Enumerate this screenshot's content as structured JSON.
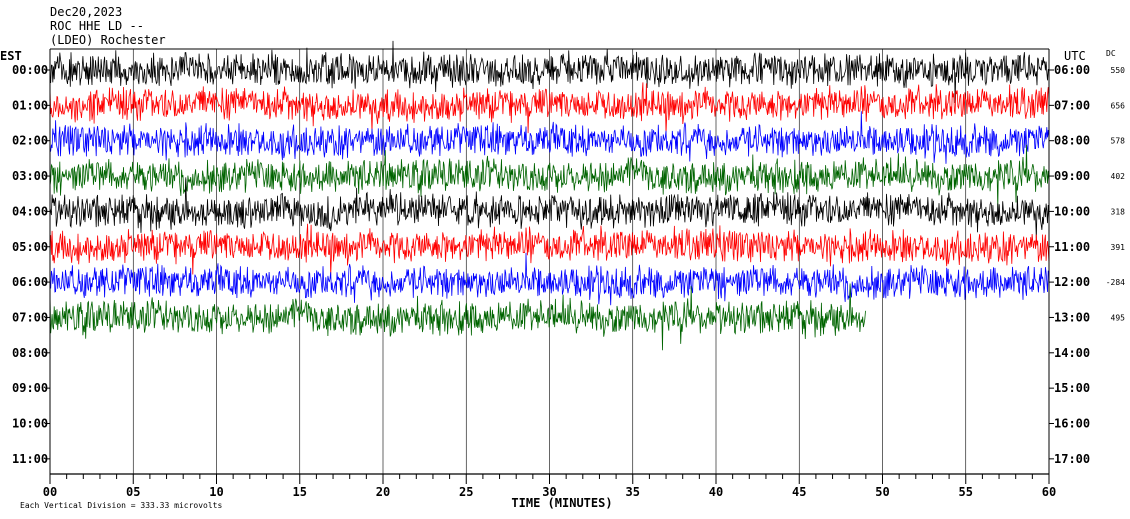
{
  "header": {
    "date": "Dec20,2023",
    "station": "ROC HHE LD --",
    "network": "(LDEO) Rochester"
  },
  "left_axis_label": "EST",
  "right_axis_label": "UTC",
  "dc_label": "DC",
  "x_axis_title": "TIME (MINUTES)",
  "footer_note": "Each Vertical Division =  333.33 microvolts",
  "chart_data": {
    "type": "line",
    "title": "Dec20,2023",
    "xlabel": "TIME (MINUTES)",
    "xlim": [
      0,
      60
    ],
    "x_ticks": [
      "00",
      "05",
      "10",
      "15",
      "20",
      "25",
      "30",
      "35",
      "40",
      "45",
      "50",
      "55",
      "60"
    ],
    "grid": true,
    "est_labels": [
      "00:00",
      "01:00",
      "02:00",
      "03:00",
      "04:00",
      "05:00",
      "06:00",
      "07:00",
      "08:00",
      "09:00",
      "10:00",
      "11:00"
    ],
    "utc_labels": [
      "06:00",
      "07:00",
      "08:00",
      "09:00",
      "10:00",
      "11:00",
      "12:00",
      "13:00",
      "14:00",
      "15:00",
      "16:00",
      "17:00"
    ],
    "dc_offsets": [
      "550",
      "656",
      "578",
      "402",
      "318",
      "391",
      "-284",
      "495"
    ],
    "trace_colors": [
      "#000000",
      "#ff0000",
      "#0000ff",
      "#006400"
    ],
    "series": [
      {
        "hour_est": "00:00",
        "color": "#000000",
        "minutes_recorded": 60
      },
      {
        "hour_est": "01:00",
        "color": "#ff0000",
        "minutes_recorded": 60
      },
      {
        "hour_est": "02:00",
        "color": "#0000ff",
        "minutes_recorded": 60
      },
      {
        "hour_est": "03:00",
        "color": "#006400",
        "minutes_recorded": 60
      },
      {
        "hour_est": "04:00",
        "color": "#000000",
        "minutes_recorded": 60
      },
      {
        "hour_est": "05:00",
        "color": "#ff0000",
        "minutes_recorded": 60
      },
      {
        "hour_est": "06:00",
        "color": "#0000ff",
        "minutes_recorded": 60
      },
      {
        "hour_est": "07:00",
        "color": "#006400",
        "minutes_recorded": 49
      }
    ]
  }
}
